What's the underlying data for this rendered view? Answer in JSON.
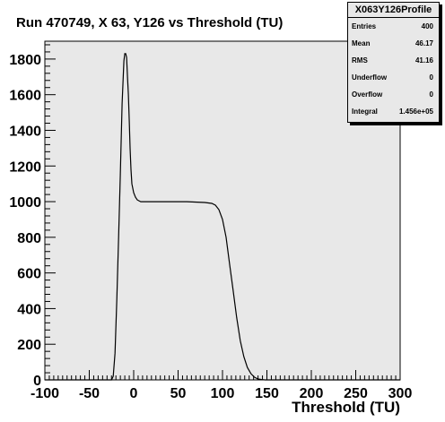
{
  "chart_data": {
    "type": "line",
    "title": "Run 470749, X 63, Y126 vs Threshold (TU)",
    "xlabel": "Threshold (TU)",
    "ylabel": "",
    "xlim": [
      -100,
      300
    ],
    "ylim": [
      0,
      1900
    ],
    "xticks": [
      "-100",
      "-50",
      "0",
      "50",
      "100",
      "150",
      "200",
      "250",
      "300"
    ],
    "yticks": [
      "0",
      "200",
      "400",
      "600",
      "800",
      "1000",
      "1200",
      "1400",
      "1600",
      "1800"
    ],
    "grid": false,
    "series": [
      {
        "name": "",
        "x": [
          -100,
          -25,
          -23,
          -21,
          -19,
          -17,
          -15,
          -13,
          -11,
          -10,
          -9,
          -8,
          -7,
          -6,
          -5,
          -4,
          -3,
          -2,
          0,
          2,
          4,
          6,
          8,
          10,
          15,
          20,
          40,
          60,
          80,
          88,
          92,
          96,
          100,
          104,
          108,
          112,
          116,
          120,
          124,
          128,
          132,
          136,
          140,
          144,
          148,
          300
        ],
        "y": [
          0,
          0,
          20,
          150,
          450,
          800,
          1150,
          1550,
          1790,
          1830,
          1830,
          1810,
          1700,
          1600,
          1450,
          1300,
          1180,
          1100,
          1050,
          1025,
          1010,
          1005,
          1000,
          1000,
          1000,
          1000,
          1000,
          1000,
          995,
          990,
          980,
          955,
          900,
          800,
          650,
          500,
          350,
          220,
          130,
          70,
          35,
          15,
          5,
          2,
          0,
          0
        ]
      }
    ],
    "stats": {
      "name": "X063Y126Profile",
      "rows": [
        {
          "label": "Entries",
          "value": "400"
        },
        {
          "label": "Mean",
          "value": "46.17"
        },
        {
          "label": "RMS",
          "value": "41.16"
        },
        {
          "label": "Underflow",
          "value": "0"
        },
        {
          "label": "Overflow",
          "value": "0"
        },
        {
          "label": "Integral",
          "value": "1.456e+05"
        }
      ]
    },
    "colors": {
      "frame_bg": "#e8e8e8",
      "line": "#000000",
      "stats_bg": "#e8e8e8"
    }
  }
}
